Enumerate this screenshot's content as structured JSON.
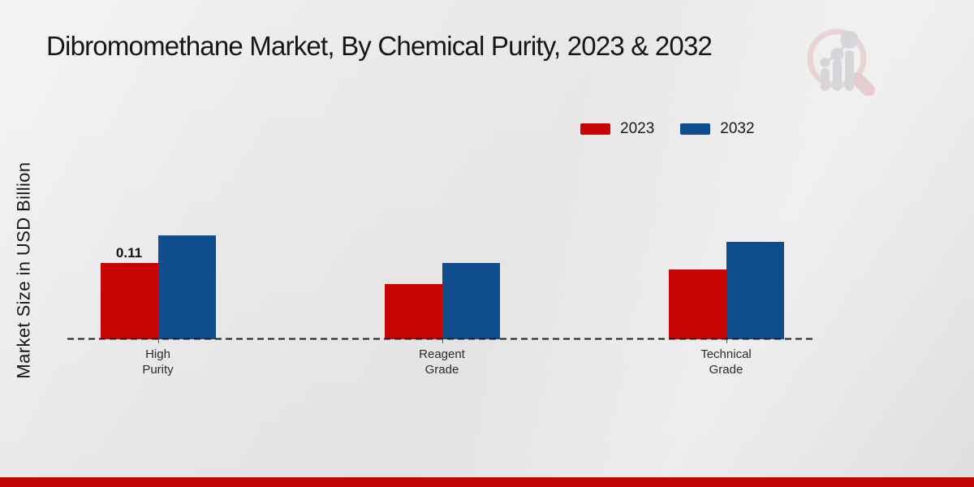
{
  "page": {
    "title": "Dibromomethane Market, By Chemical Purity, 2023 & 2032",
    "footer_color": "#c10505",
    "watermark_icon": "market-research-future-logo"
  },
  "chart_data": {
    "type": "bar",
    "title": "Dibromomethane Market, By Chemical Purity, 2023 & 2032",
    "xlabel": "",
    "ylabel": "Market Size in USD Billion",
    "categories": [
      "High\nPurity",
      "Reagent\nGrade",
      "Technical\nGrade"
    ],
    "series": [
      {
        "name": "2023",
        "color": "#c80404",
        "values": [
          0.11,
          0.08,
          0.1
        ]
      },
      {
        "name": "2032",
        "color": "#0f4d8c",
        "values": [
          0.15,
          0.11,
          0.14
        ]
      }
    ],
    "bar_value_labels": [
      {
        "series": "2023",
        "category_index": 0,
        "text": "0.11"
      }
    ],
    "legend_position": "top-right",
    "grid": false,
    "baseline_style": "dashed",
    "y_axis_ticks_visible": false
  }
}
